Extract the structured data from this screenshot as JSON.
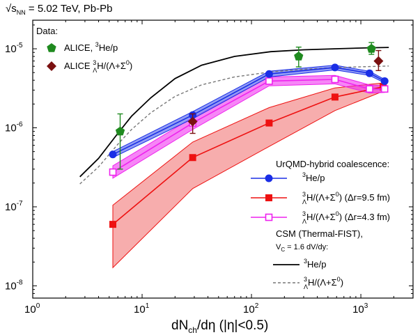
{
  "chart_data": {
    "type": "scatter",
    "title": "√s_NN = 5.02 TeV, Pb-Pb",
    "title_parts": {
      "sqrt": "√s",
      "sub": "NN",
      "rest": " = 5.02 TeV, Pb-Pb"
    },
    "xlabel": "dN_ch/dη (|η|<0.5)",
    "xlabel_parts": {
      "main": "dN",
      "sub": "ch",
      "rest": "/dη (|η|<0.5)"
    },
    "ylabel": "",
    "x_scale": "log",
    "y_scale": "log",
    "xlim": [
      1,
      3000
    ],
    "ylim": [
      7e-09,
      2.3e-05
    ],
    "x_ticks": [
      {
        "value": 1,
        "base": "10",
        "exp": "0"
      },
      {
        "value": 10,
        "base": "10",
        "exp": "1"
      },
      {
        "value": 100,
        "base": "10",
        "exp": "2"
      },
      {
        "value": 1000,
        "base": "10",
        "exp": "3"
      }
    ],
    "y_ticks": [
      {
        "value": 1e-08,
        "base": "10",
        "exp": "-8"
      },
      {
        "value": 1e-07,
        "base": "10",
        "exp": "-7"
      },
      {
        "value": 1e-06,
        "base": "10",
        "exp": "-6"
      },
      {
        "value": 1e-05,
        "base": "10",
        "exp": "-5"
      }
    ],
    "grid": false,
    "legend_data": {
      "header": "Data:",
      "entries": [
        {
          "series": "alice_he3p",
          "pre": "ALICE, ",
          "sup": "3",
          "sub": "",
          "post": "He/p"
        },
        {
          "series": "alice_h3l",
          "pre": "ALICE ",
          "sup": "3",
          "sub": "Λ",
          "post": "H/(Λ+Σ",
          "sup2": "0",
          "post2": ")"
        }
      ]
    },
    "legend_models": {
      "header": "UrQMD-hybrid coalescence:",
      "entries": [
        {
          "series": "urqmd_he3p",
          "pre": "",
          "sup": "3",
          "sub": "",
          "post": "He/p"
        },
        {
          "series": "urqmd_h3l_95",
          "pre": "",
          "sup": "3",
          "sub": "Λ",
          "post": "H/(Λ+Σ",
          "sup2": "0",
          "post2": ") (Δr=9.5 fm)"
        },
        {
          "series": "urqmd_h3l_43",
          "pre": "",
          "sup": "3",
          "sub": "Λ",
          "post": "H/(Λ+Σ",
          "sup2": "0",
          "post2": ") (Δr=4.3 fm)"
        }
      ],
      "csm_header": "CSM (Thermal-FIST),",
      "csm_sub": {
        "pre": "V",
        "sub": "C",
        "post": " = 1.6 dV/dy:"
      },
      "csm_entries": [
        {
          "series": "csm_he3p",
          "pre": "",
          "sup": "3",
          "sub": "",
          "post": "He/p"
        },
        {
          "series": "csm_h3l",
          "pre": "",
          "sup": "3",
          "sub": "Λ",
          "post": "H/(Λ+Σ",
          "sup2": "0",
          "post2": ")"
        }
      ]
    },
    "series": [
      {
        "id": "urqmd_h3l_95",
        "name": "³ΛH/(Λ+Σ⁰) (Δr=9.5 fm)",
        "kind": "model",
        "color": "#ee1111",
        "band_color": "#f48a8a",
        "marker": "square-filled",
        "x": [
          5.4,
          29,
          145,
          580,
          1600
        ],
        "y": [
          6e-08,
          4.2e-07,
          1.15e-06,
          2.45e-06,
          3.3e-06
        ],
        "band_low": [
          1.7e-08,
          1.7e-07,
          5.8e-07,
          1.65e-06,
          2.9e-06
        ],
        "band_high": [
          1.05e-07,
          6.6e-07,
          1.8e-06,
          3.2e-06,
          3.7e-06
        ]
      },
      {
        "id": "urqmd_h3l_43",
        "name": "³ΛH/(Λ+Σ⁰) (Δr=4.3 fm)",
        "kind": "model",
        "color": "#ee22ee",
        "band_color": "#ee22ee",
        "marker": "square-open",
        "x": [
          5.4,
          29,
          145,
          580,
          1200,
          1650
        ],
        "y": [
          2.75e-07,
          1.15e-06,
          3.9e-06,
          4.1e-06,
          3.1e-06,
          3.1e-06
        ],
        "band_low": [
          2.3e-07,
          9.5e-07,
          3.4e-06,
          3.6e-06,
          2.75e-06,
          2.8e-06
        ],
        "band_high": [
          3.3e-07,
          1.35e-06,
          4.4e-06,
          4.6e-06,
          3.5e-06,
          3.4e-06
        ]
      },
      {
        "id": "urqmd_he3p",
        "name": "³He/p",
        "kind": "model",
        "color": "#1a2ee6",
        "band_color": "#6f7ef2",
        "marker": "circle-filled",
        "x": [
          5.4,
          29,
          145,
          580,
          1200,
          1650
        ],
        "y": [
          4.6e-07,
          1.45e-06,
          4.8e-06,
          5.8e-06,
          4.9e-06,
          3.9e-06
        ],
        "band_low": [
          4.2e-07,
          1.3e-06,
          4.4e-06,
          5.4e-06,
          4.6e-06,
          3.7e-06
        ],
        "band_high": [
          5e-07,
          1.6e-06,
          5.2e-06,
          6.2e-06,
          5.2e-06,
          4.1e-06
        ]
      },
      {
        "id": "csm_he3p",
        "name": "³He/p",
        "kind": "curve",
        "color": "#000000",
        "dash": "",
        "x": [
          2.7,
          4,
          6,
          8,
          12,
          20,
          35,
          70,
          150,
          300,
          600,
          1200,
          1800
        ],
        "y": [
          2.4e-07,
          4.1e-07,
          8.5e-07,
          1.4e-06,
          2.4e-06,
          4.2e-06,
          6.2e-06,
          8e-06,
          9.2e-06,
          9.7e-06,
          1e-05,
          1.03e-05,
          1.04e-05
        ]
      },
      {
        "id": "csm_h3l",
        "name": "³ΛH/(Λ+Σ⁰)",
        "kind": "curve",
        "color": "#777777",
        "dash": "4,3",
        "x": [
          2.7,
          4,
          6,
          8,
          12,
          20,
          35,
          70,
          150,
          300,
          600,
          1200,
          1800
        ],
        "y": [
          1.95e-07,
          3.2e-07,
          6.2e-07,
          9.5e-07,
          1.55e-06,
          2.5e-06,
          3.5e-06,
          4.4e-06,
          5.1e-06,
          5.5e-06,
          5.8e-06,
          5.95e-06,
          6.05e-06
        ]
      },
      {
        "id": "alice_he3p",
        "name": "ALICE, ³He/p",
        "kind": "data",
        "color": "#1f8a1f",
        "marker": "pentagon",
        "x": [
          6.3,
          270,
          1250
        ],
        "y": [
          9e-07,
          8e-06,
          1e-05
        ],
        "y_err_low": [
          3e-07,
          5.9e-06,
          8.5e-06
        ],
        "y_err_high": [
          1.5e-06,
          1.05e-05,
          1.2e-05
        ]
      },
      {
        "id": "alice_h3l",
        "name": "ALICE ³ΛH/(Λ+Σ⁰)",
        "kind": "data",
        "color": "#7a1010",
        "marker": "diamond",
        "x": [
          29,
          1450
        ],
        "y": [
          1.2e-06,
          7e-06
        ],
        "y_err_low": [
          8.5e-07,
          5.3e-06
        ],
        "y_err_high": [
          1.5e-06,
          9.5e-06
        ]
      }
    ]
  }
}
